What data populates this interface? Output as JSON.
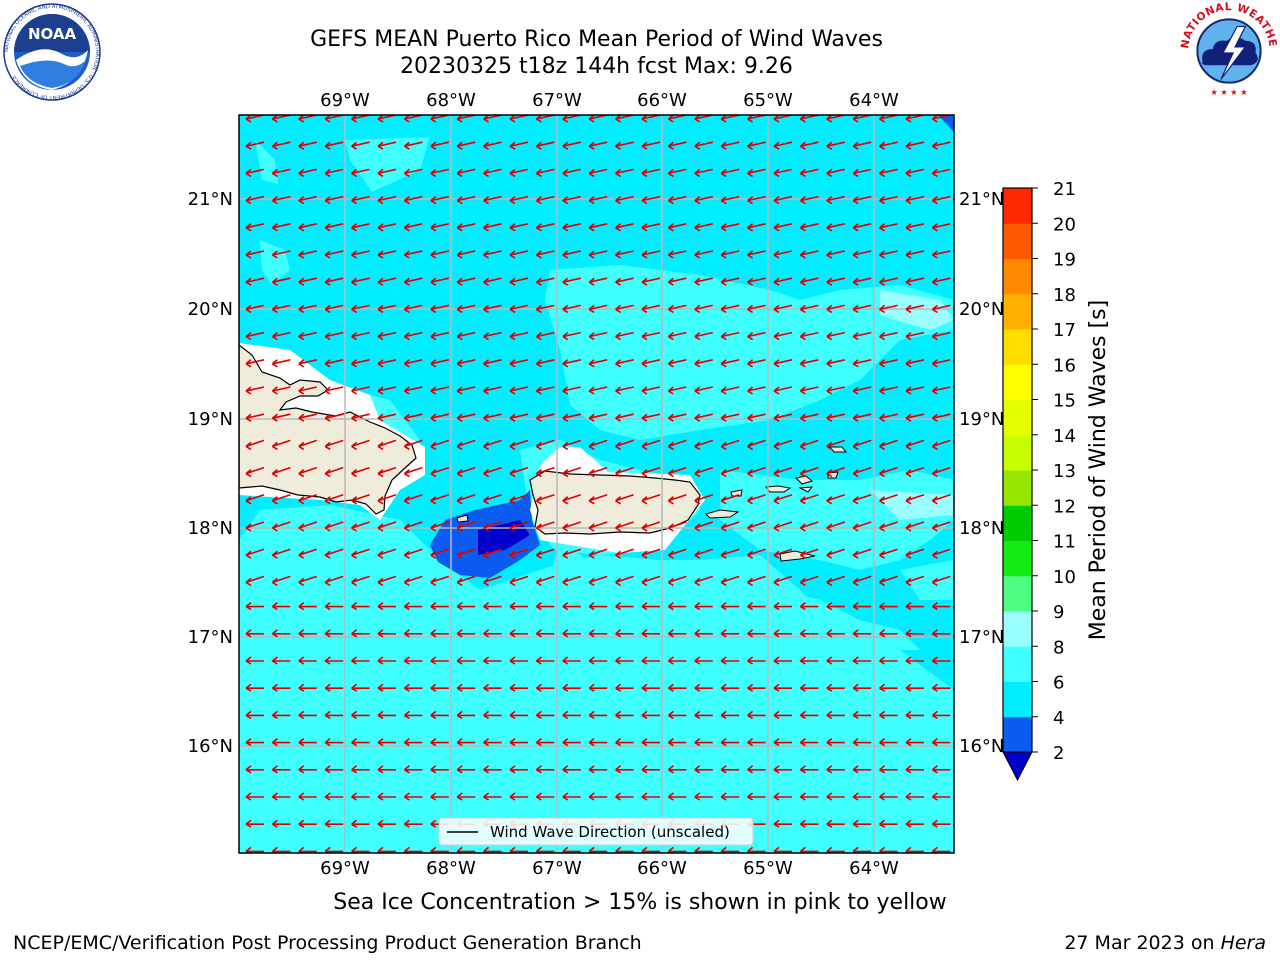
{
  "title": {
    "line1": "GEFS MEAN Puerto Rico Mean Period of Wind Waves",
    "line2": "20230325 t18z 144h fcst   Max: 9.26"
  },
  "logos": {
    "left": "NOAA",
    "left_ring_text": "NATIONAL OCEANIC AND ATMOSPHERIC ADMINISTRATION · U.S. DEPARTMENT OF COMMERCE",
    "right_ring_text": "NATIONAL WEATHER SERVICE"
  },
  "map": {
    "lon_labels": [
      "69°W",
      "68°W",
      "67°W",
      "66°W",
      "65°W",
      "64°W"
    ],
    "lat_labels": [
      "21°N",
      "20°N",
      "19°N",
      "18°N",
      "17°N",
      "16°N"
    ],
    "legend_label": "Wind Wave Direction (unscaled)",
    "arrow_color": "#e00000",
    "land_color": "#efecdc"
  },
  "colorbar": {
    "label": "Mean Period of Wind Waves [s]",
    "ticks": [
      "2",
      "4",
      "6",
      "8",
      "9",
      "10",
      "11",
      "12",
      "13",
      "14",
      "15",
      "16",
      "17",
      "18",
      "19",
      "20",
      "21"
    ],
    "colors": [
      "#0a5cf0",
      "#00eeff",
      "#40ffff",
      "#99ffff",
      "#4dff80",
      "#13ec13",
      "#00cc00",
      "#96e600",
      "#c8ff00",
      "#e6ff00",
      "#ffff00",
      "#ffdd00",
      "#ffb000",
      "#ff8a00",
      "#ff5a00",
      "#ff2800",
      "#ff0000"
    ],
    "under_color": "#0000cc"
  },
  "footer": {
    "caption": "Sea Ice Concentration > 15% is shown in pink to yellow",
    "credit": "NCEP/EMC/Verification Post Processing Product Generation Branch",
    "date": "27 Mar 2023 on",
    "host": "Hera"
  }
}
